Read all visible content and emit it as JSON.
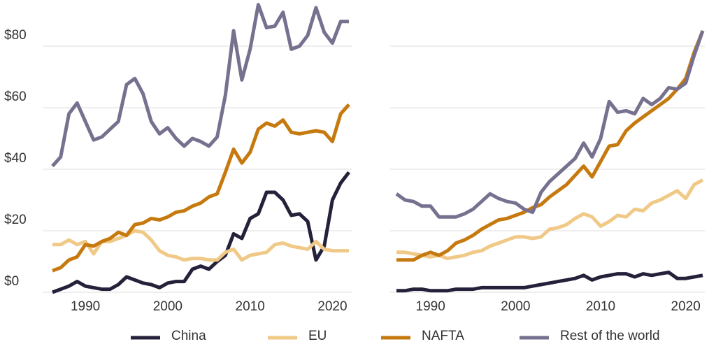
{
  "chart_data": [
    {
      "type": "line",
      "x": [
        1986,
        1987,
        1988,
        1989,
        1990,
        1991,
        1992,
        1993,
        1994,
        1995,
        1996,
        1997,
        1998,
        1999,
        2000,
        2001,
        2002,
        2003,
        2004,
        2005,
        2006,
        2007,
        2008,
        2009,
        2010,
        2011,
        2012,
        2013,
        2014,
        2015,
        2016,
        2017,
        2018,
        2019,
        2020,
        2021,
        2022
      ],
      "xlim": [
        1986,
        2022
      ],
      "xticks": [
        1990,
        2000,
        2010,
        2020
      ],
      "ylim": [
        0,
        95
      ],
      "yticks": [
        {
          "value": 0,
          "label": "$0"
        },
        {
          "value": 20,
          "label": "$20"
        },
        {
          "value": 40,
          "label": "$40"
        },
        {
          "value": 60,
          "label": "$60"
        },
        {
          "value": 80,
          "label": "$80"
        }
      ],
      "grid": true,
      "series": [
        {
          "name": "China",
          "color": "#24213a",
          "values": [
            0,
            1,
            2,
            3.5,
            2,
            1.5,
            1,
            1,
            2.5,
            5,
            4,
            3,
            2.5,
            1.5,
            3,
            3.5,
            3.5,
            7.5,
            8.5,
            7.5,
            10,
            12,
            19,
            17.5,
            24,
            25.5,
            32.5,
            32.5,
            30,
            25,
            25.5,
            23,
            10.5,
            15,
            30,
            35.5,
            39
          ]
        },
        {
          "name": "EU",
          "color": "#f0c987",
          "values": [
            15.5,
            15.5,
            17,
            15.5,
            16.5,
            12.5,
            16.5,
            16.5,
            17.5,
            18.5,
            20,
            19.5,
            17,
            13.5,
            12,
            11.5,
            10.5,
            11,
            11,
            10.5,
            10.5,
            13,
            14,
            10.5,
            12,
            12.5,
            13,
            15.5,
            16,
            15,
            14.5,
            14,
            16.5,
            14,
            13.5,
            13.5,
            13.5
          ]
        },
        {
          "name": "NAFTA",
          "color": "#c6790e",
          "values": [
            7,
            8,
            10.5,
            11.5,
            15.5,
            15,
            16.5,
            17.5,
            19.5,
            18.5,
            22,
            22.5,
            24,
            23.5,
            24.5,
            26,
            26.5,
            28,
            29,
            31,
            32,
            39,
            46.5,
            42,
            45.5,
            53,
            55,
            54,
            56,
            52,
            51.5,
            52,
            52.5,
            52,
            49,
            58,
            61
          ]
        },
        {
          "name": "Rest of the world",
          "color": "#77708f",
          "values": [
            41,
            44,
            58,
            61.5,
            55.5,
            49.5,
            50.5,
            53,
            55.5,
            67.5,
            69.5,
            64.5,
            55.5,
            51.5,
            53.5,
            50,
            47.5,
            50,
            49,
            47.5,
            50.5,
            64,
            85,
            69,
            79,
            93.5,
            86,
            86.5,
            91,
            79,
            80,
            83.5,
            92.5,
            84.5,
            81,
            88,
            88
          ]
        }
      ]
    },
    {
      "type": "line",
      "x": [
        1986,
        1987,
        1988,
        1989,
        1990,
        1991,
        1992,
        1993,
        1994,
        1995,
        1996,
        1997,
        1998,
        1999,
        2000,
        2001,
        2002,
        2003,
        2004,
        2005,
        2006,
        2007,
        2008,
        2009,
        2010,
        2011,
        2012,
        2013,
        2014,
        2015,
        2016,
        2017,
        2018,
        2019,
        2020,
        2021,
        2022
      ],
      "xlim": [
        1986,
        2022
      ],
      "xticks": [
        1990,
        2000,
        2010,
        2020
      ],
      "ylim": [
        0,
        95
      ],
      "grid": true,
      "series": [
        {
          "name": "China",
          "color": "#24213a",
          "values": [
            0.5,
            0.5,
            1,
            1,
            0.5,
            0.5,
            0.5,
            1,
            1,
            1,
            1.5,
            1.5,
            1.5,
            1.5,
            1.5,
            1.5,
            2,
            2.5,
            3,
            3.5,
            4,
            4.5,
            5.5,
            4,
            5,
            5.5,
            6,
            6,
            5,
            6,
            5.5,
            6,
            6.5,
            4.5,
            4.5,
            5,
            5.5
          ]
        },
        {
          "name": "EU",
          "color": "#f0c987",
          "values": [
            13,
            13,
            12.5,
            12,
            11.5,
            12,
            11,
            11.5,
            12,
            13,
            13.5,
            15,
            16,
            17,
            18,
            18,
            17.5,
            18,
            20.5,
            21,
            22,
            24,
            25.5,
            24.5,
            21.5,
            23,
            25,
            24.5,
            27,
            26.5,
            29,
            30,
            31.5,
            33,
            30.5,
            35,
            36.5
          ]
        },
        {
          "name": "NAFTA",
          "color": "#c6790e",
          "values": [
            10.5,
            10.5,
            10.5,
            12,
            13,
            12,
            13.5,
            16,
            17,
            18.5,
            20.5,
            22,
            23.5,
            24,
            25,
            26,
            27.5,
            28.5,
            31,
            33,
            35,
            38,
            41,
            37.5,
            42.5,
            47.5,
            48,
            52.5,
            55,
            57,
            59,
            61,
            63,
            66,
            69.5,
            78,
            85
          ]
        },
        {
          "name": "Rest of the world",
          "color": "#77708f",
          "values": [
            32,
            30,
            29.5,
            28,
            28,
            24.5,
            24.5,
            24.5,
            25.5,
            27,
            29.5,
            32,
            30.5,
            29.5,
            29,
            27,
            26,
            32.5,
            36,
            38.5,
            41,
            43.5,
            48.5,
            44,
            50,
            62,
            58.5,
            59,
            58,
            63,
            61,
            63,
            66.5,
            66,
            68,
            77,
            85
          ]
        }
      ]
    }
  ]
}
